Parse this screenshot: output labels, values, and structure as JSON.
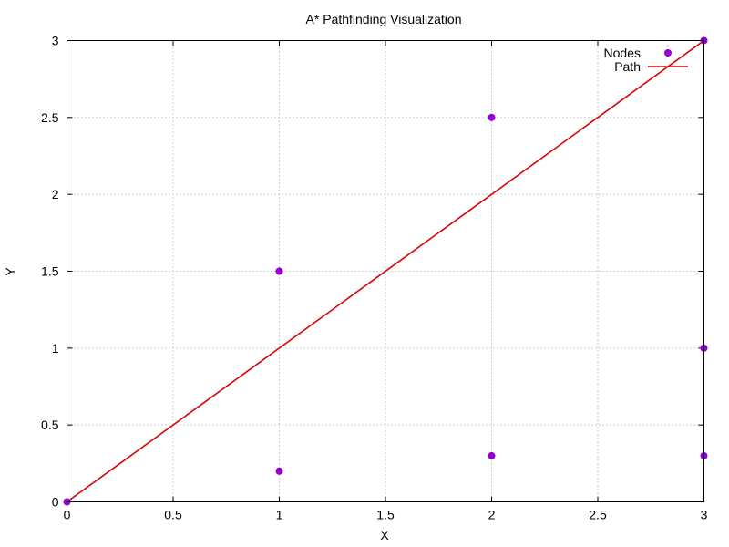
{
  "chart_data": {
    "type": "scatter",
    "title": "A* Pathfinding Visualization",
    "xlabel": "X",
    "ylabel": "Y",
    "xlim": [
      0,
      3
    ],
    "ylim": [
      0,
      3
    ],
    "xticks": [
      0,
      0.5,
      1,
      1.5,
      2,
      2.5,
      3
    ],
    "yticks": [
      0,
      0.5,
      1,
      1.5,
      2,
      2.5,
      3
    ],
    "grid": true,
    "legend_position": "top-right",
    "series": [
      {
        "name": "Nodes",
        "type": "scatter",
        "color": "#9400d3",
        "points": [
          {
            "x": 0,
            "y": 0
          },
          {
            "x": 1,
            "y": 0.2
          },
          {
            "x": 1,
            "y": 1.5
          },
          {
            "x": 2,
            "y": 0.3
          },
          {
            "x": 2,
            "y": 2.5
          },
          {
            "x": 3,
            "y": 0.3
          },
          {
            "x": 3,
            "y": 1
          },
          {
            "x": 3,
            "y": 3
          }
        ]
      },
      {
        "name": "Path",
        "type": "line",
        "color": "#dd0000",
        "points": [
          {
            "x": 0,
            "y": 0
          },
          {
            "x": 3,
            "y": 3
          }
        ]
      }
    ]
  }
}
